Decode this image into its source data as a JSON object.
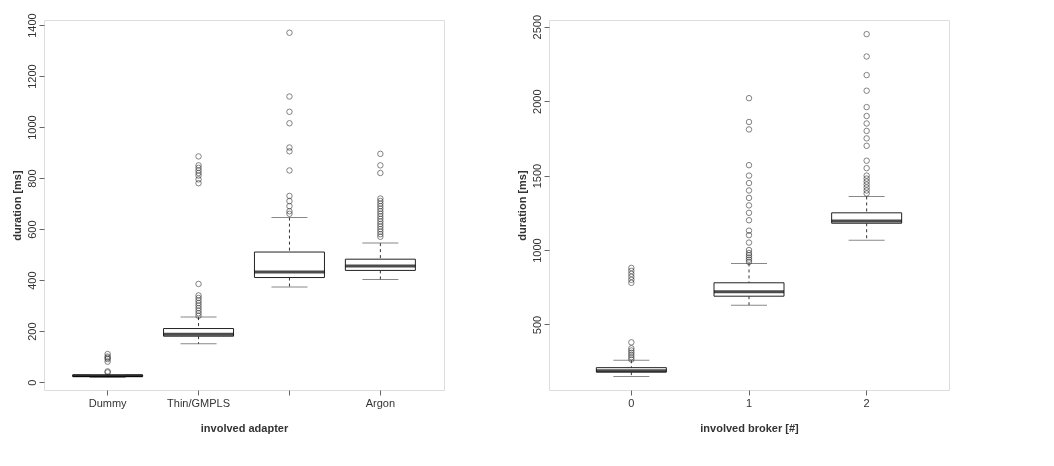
{
  "chart_data": [
    {
      "type": "box",
      "categories": [
        "Dummy",
        "Thin/GMPLS",
        null,
        "Argon"
      ],
      "xlabel": "involved adapter",
      "ylabel": "duration [ms]",
      "ylim": [
        -31,
        1420
      ],
      "yticks": [
        0,
        200,
        400,
        600,
        800,
        1000,
        1200,
        1400
      ],
      "grid": false,
      "boxes": [
        {
          "low": 18,
          "q1": 22,
          "median": 25,
          "q3": 28,
          "high": 30,
          "outliers": [
            38,
            42,
            80,
            90,
            95,
            100,
            110
          ]
        },
        {
          "low": 150,
          "q1": 180,
          "median": 188,
          "q3": 210,
          "high": 255,
          "outliers": [
            260,
            270,
            280,
            290,
            300,
            310,
            320,
            330,
            340,
            385,
            780,
            795,
            810,
            820,
            830,
            840,
            850,
            885
          ]
        },
        {
          "low": 373,
          "q1": 410,
          "median": 432,
          "q3": 510,
          "high": 645,
          "outliers": [
            660,
            670,
            690,
            710,
            730,
            830,
            905,
            920,
            1015,
            1060,
            1120,
            1370
          ]
        },
        {
          "low": 402,
          "q1": 438,
          "median": 455,
          "q3": 482,
          "high": 545,
          "outliers": [
            570,
            580,
            590,
            600,
            610,
            620,
            630,
            640,
            650,
            660,
            670,
            680,
            690,
            700,
            710,
            720,
            820,
            850,
            895
          ]
        }
      ]
    },
    {
      "type": "box",
      "categories": [
        "0",
        "1",
        "2"
      ],
      "xlabel": "involved broker [#]",
      "ylabel": "duration [ms]",
      "ylim": [
        60,
        2545
      ],
      "yticks": [
        500,
        1000,
        1500,
        2000,
        2500
      ],
      "grid": false,
      "boxes": [
        {
          "low": 150,
          "q1": 180,
          "median": 190,
          "q3": 210,
          "high": 260,
          "outliers": [
            265,
            280,
            295,
            310,
            325,
            340,
            380,
            780,
            800,
            820,
            840,
            860,
            880
          ]
        },
        {
          "low": 630,
          "q1": 690,
          "median": 720,
          "q3": 780,
          "high": 910,
          "outliers": [
            920,
            935,
            950,
            965,
            980,
            1000,
            1050,
            1100,
            1130,
            1200,
            1250,
            1300,
            1350,
            1400,
            1450,
            1500,
            1570,
            1810,
            1860,
            2020
          ]
        },
        {
          "low": 1065,
          "q1": 1180,
          "median": 1195,
          "q3": 1250,
          "high": 1360,
          "outliers": [
            1380,
            1400,
            1420,
            1440,
            1460,
            1480,
            1500,
            1550,
            1600,
            1700,
            1750,
            1800,
            1850,
            1900,
            1960,
            2070,
            2175,
            2300,
            2450
          ]
        }
      ]
    }
  ]
}
